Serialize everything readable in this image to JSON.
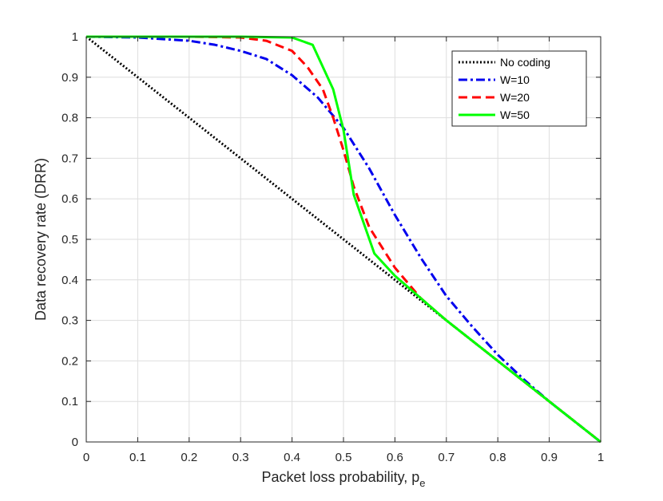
{
  "chart_data": {
    "type": "line",
    "xlabel": "Packet loss probability, p",
    "xlabel_subscript": "e",
    "ylabel": "Data recovery rate (DRR)",
    "xlim": [
      0,
      1
    ],
    "ylim": [
      0,
      1
    ],
    "xticks": [
      "0",
      "0.1",
      "0.2",
      "0.3",
      "0.4",
      "0.5",
      "0.6",
      "0.7",
      "0.8",
      "0.9",
      "1"
    ],
    "yticks": [
      "0",
      "0.1",
      "0.2",
      "0.3",
      "0.4",
      "0.5",
      "0.6",
      "0.7",
      "0.8",
      "0.9",
      "1"
    ],
    "grid": true,
    "legend_position": "top-right",
    "series": [
      {
        "name": "No coding",
        "color": "#000000",
        "style": "dotted",
        "x": [
          0,
          1
        ],
        "y": [
          1,
          0
        ]
      },
      {
        "name": "W=10",
        "color": "#0000ee",
        "style": "dashdot",
        "x": [
          0,
          0.1,
          0.2,
          0.25,
          0.3,
          0.35,
          0.4,
          0.45,
          0.5,
          0.55,
          0.6,
          0.65,
          0.7,
          0.75,
          0.8,
          0.85,
          0.9,
          0.95,
          1.0
        ],
        "y": [
          1.0,
          0.998,
          0.99,
          0.98,
          0.965,
          0.945,
          0.905,
          0.85,
          0.775,
          0.675,
          0.56,
          0.455,
          0.36,
          0.285,
          0.215,
          0.155,
          0.1,
          0.05,
          0.0
        ]
      },
      {
        "name": "W=20",
        "color": "#ff0000",
        "style": "dashed",
        "x": [
          0,
          0.1,
          0.2,
          0.3,
          0.35,
          0.4,
          0.43,
          0.46,
          0.48,
          0.5,
          0.52,
          0.55,
          0.6,
          0.65,
          0.7,
          0.8,
          0.9,
          1.0
        ],
        "y": [
          1.0,
          1.0,
          1.0,
          0.998,
          0.99,
          0.965,
          0.925,
          0.87,
          0.8,
          0.72,
          0.63,
          0.53,
          0.43,
          0.355,
          0.3,
          0.2,
          0.1,
          0.0
        ]
      },
      {
        "name": "W=50",
        "color": "#00ff00",
        "style": "solid",
        "x": [
          0,
          0.1,
          0.2,
          0.3,
          0.4,
          0.44,
          0.48,
          0.5,
          0.52,
          0.56,
          0.6,
          0.7,
          0.8,
          0.9,
          1.0
        ],
        "y": [
          1.0,
          1.0,
          1.0,
          1.0,
          0.998,
          0.98,
          0.87,
          0.77,
          0.61,
          0.465,
          0.41,
          0.3,
          0.2,
          0.1,
          0.0
        ]
      }
    ]
  }
}
